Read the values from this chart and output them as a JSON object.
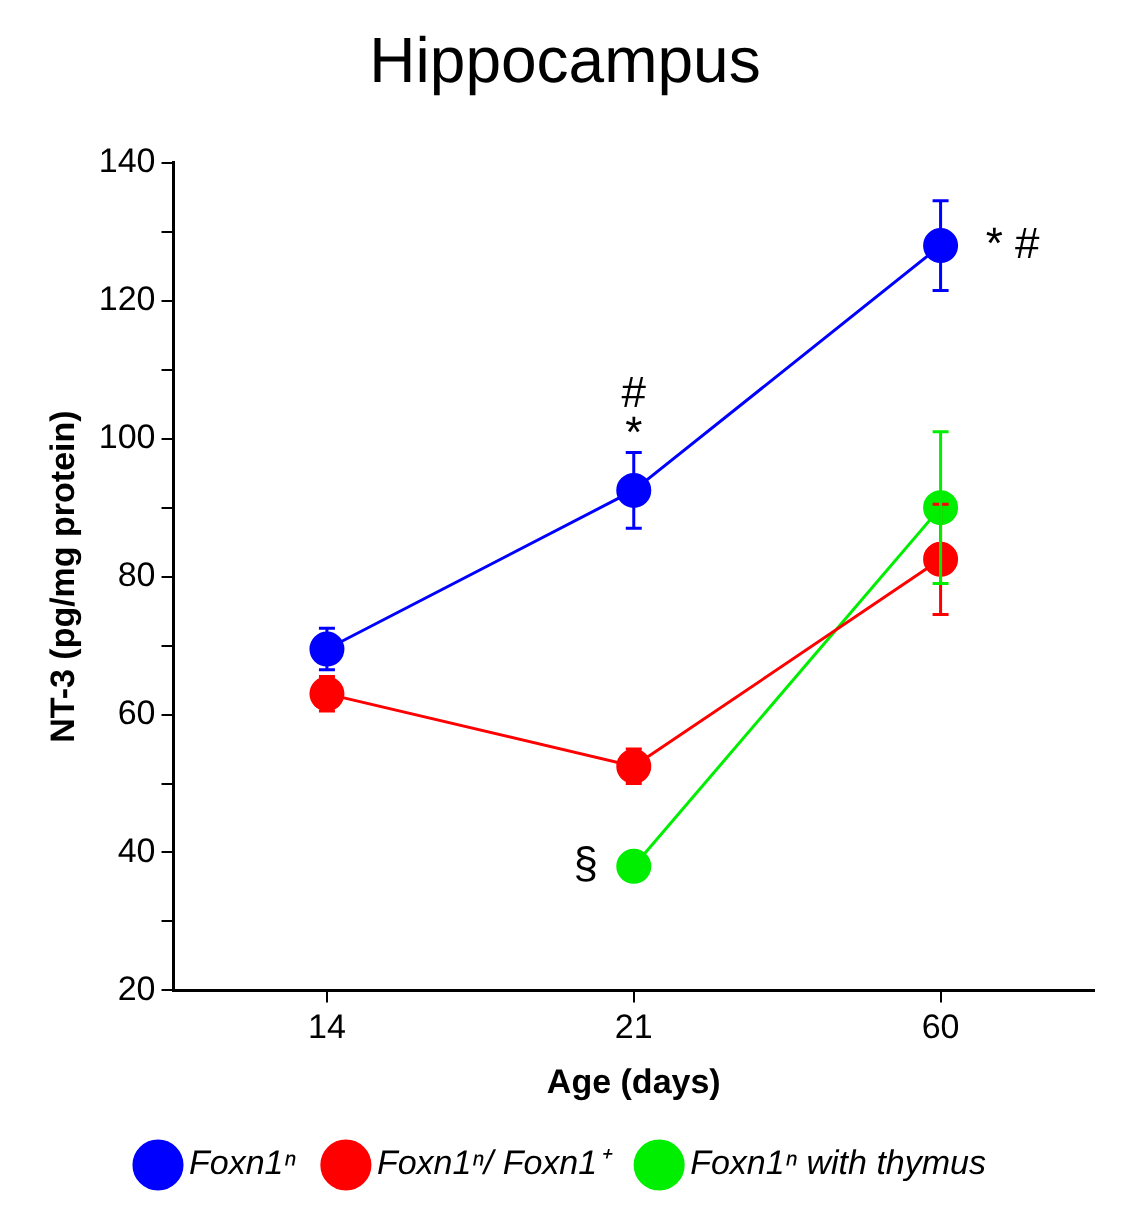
{
  "chart_data": {
    "type": "line",
    "title": "Hippocampus",
    "xlabel": "Age (days)",
    "ylabel": "NT-3 (pg/mg protein)",
    "categories": [
      "14",
      "21",
      "60"
    ],
    "series": [
      {
        "name": "Foxn1ⁿ",
        "color": "#0000ff",
        "values": [
          69.5,
          92.5,
          128
        ],
        "errors": [
          3,
          5.5,
          6.5
        ]
      },
      {
        "name": "Foxn1ⁿ/ Foxn1⁺",
        "color": "#ff0000",
        "values": [
          63,
          52.5,
          82.5
        ],
        "errors": [
          2.5,
          2.5,
          8
        ]
      },
      {
        "name": "Foxn1ⁿ with thymus",
        "color": "#00ee00",
        "values": [
          null,
          38,
          90
        ],
        "errors": [
          null,
          null,
          11
        ]
      }
    ],
    "ylim": [
      20,
      140
    ],
    "yticks": [
      20,
      {
        "value": 30,
        "label": null
      },
      40,
      {
        "value": 50,
        "label": null
      },
      60,
      {
        "value": 70,
        "label": null
      },
      80,
      {
        "value": 90,
        "label": null
      },
      100,
      {
        "value": 110,
        "label": null
      },
      120,
      {
        "value": 130,
        "label": null
      },
      140
    ],
    "annotations": [
      {
        "text": "#",
        "x": "21",
        "y": 92.5
      },
      {
        "text": "*",
        "x": "21",
        "y": 92.5
      },
      {
        "text": "* #",
        "x": "60",
        "y": 128
      },
      {
        "text": "§",
        "x": "21",
        "y": 38
      }
    ],
    "grid": false,
    "legend": "bottom",
    "marker": "circle",
    "line_style": "solid"
  }
}
